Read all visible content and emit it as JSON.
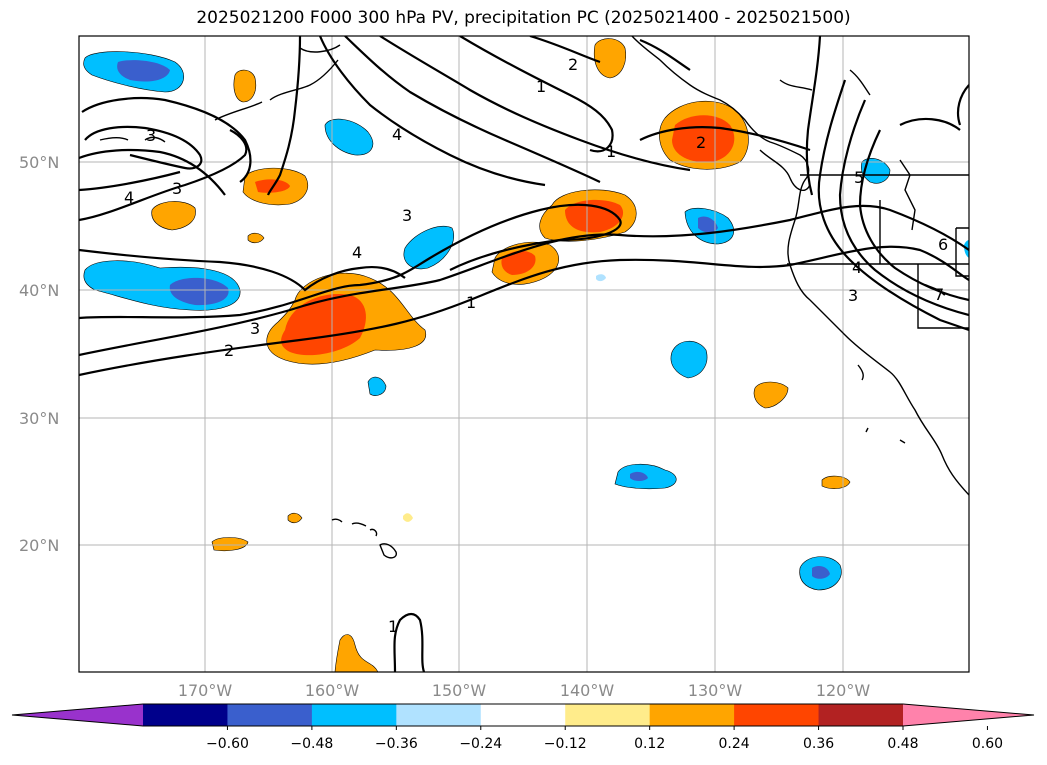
{
  "title": "2025021200 F000 300 hPa PV, precipitation PC (2025021400 - 2025021500)",
  "lat_labels": [
    "50°N",
    "40°N",
    "30°N",
    "20°N"
  ],
  "lon_labels": [
    "170°W",
    "160°W",
    "150°W",
    "140°W",
    "130°W",
    "120°W"
  ],
  "colorbar": {
    "colors": [
      "#9932cc",
      "#00008b",
      "#3a5fcd",
      "#00bfff",
      "#b0e2ff",
      "#ffffff",
      "#ffec8b",
      "#ffa500",
      "#ff4500",
      "#b22222",
      "#ff82ab"
    ],
    "tick_labels": [
      "−0.60",
      "−0.48",
      "−0.36",
      "−0.24",
      "−0.12",
      "0.12",
      "0.24",
      "0.36",
      "0.48",
      "0.60"
    ]
  },
  "contour_labels": [
    "4",
    "4",
    "3",
    "3",
    "2",
    "2",
    "1",
    "1",
    "3",
    "4",
    "3",
    "2",
    "1",
    "3",
    "4",
    "5",
    "6",
    "7",
    "1"
  ]
}
